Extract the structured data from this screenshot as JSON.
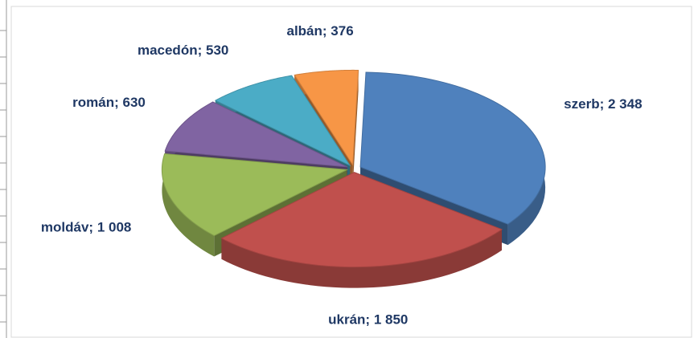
{
  "chart_data": {
    "type": "pie3d",
    "categories": [
      "szerb",
      "ukrán",
      "moldáv",
      "román",
      "macedón",
      "albán"
    ],
    "values": [
      2348,
      1850,
      1008,
      630,
      530,
      376
    ],
    "value_labels": [
      "2 348",
      "1 850",
      "1 008",
      "630",
      "530",
      "376"
    ],
    "label_separator": "; ",
    "colors": [
      "#4f81bd",
      "#c0504d",
      "#9bbb59",
      "#8064a2",
      "#4bacc6",
      "#f79646"
    ]
  }
}
